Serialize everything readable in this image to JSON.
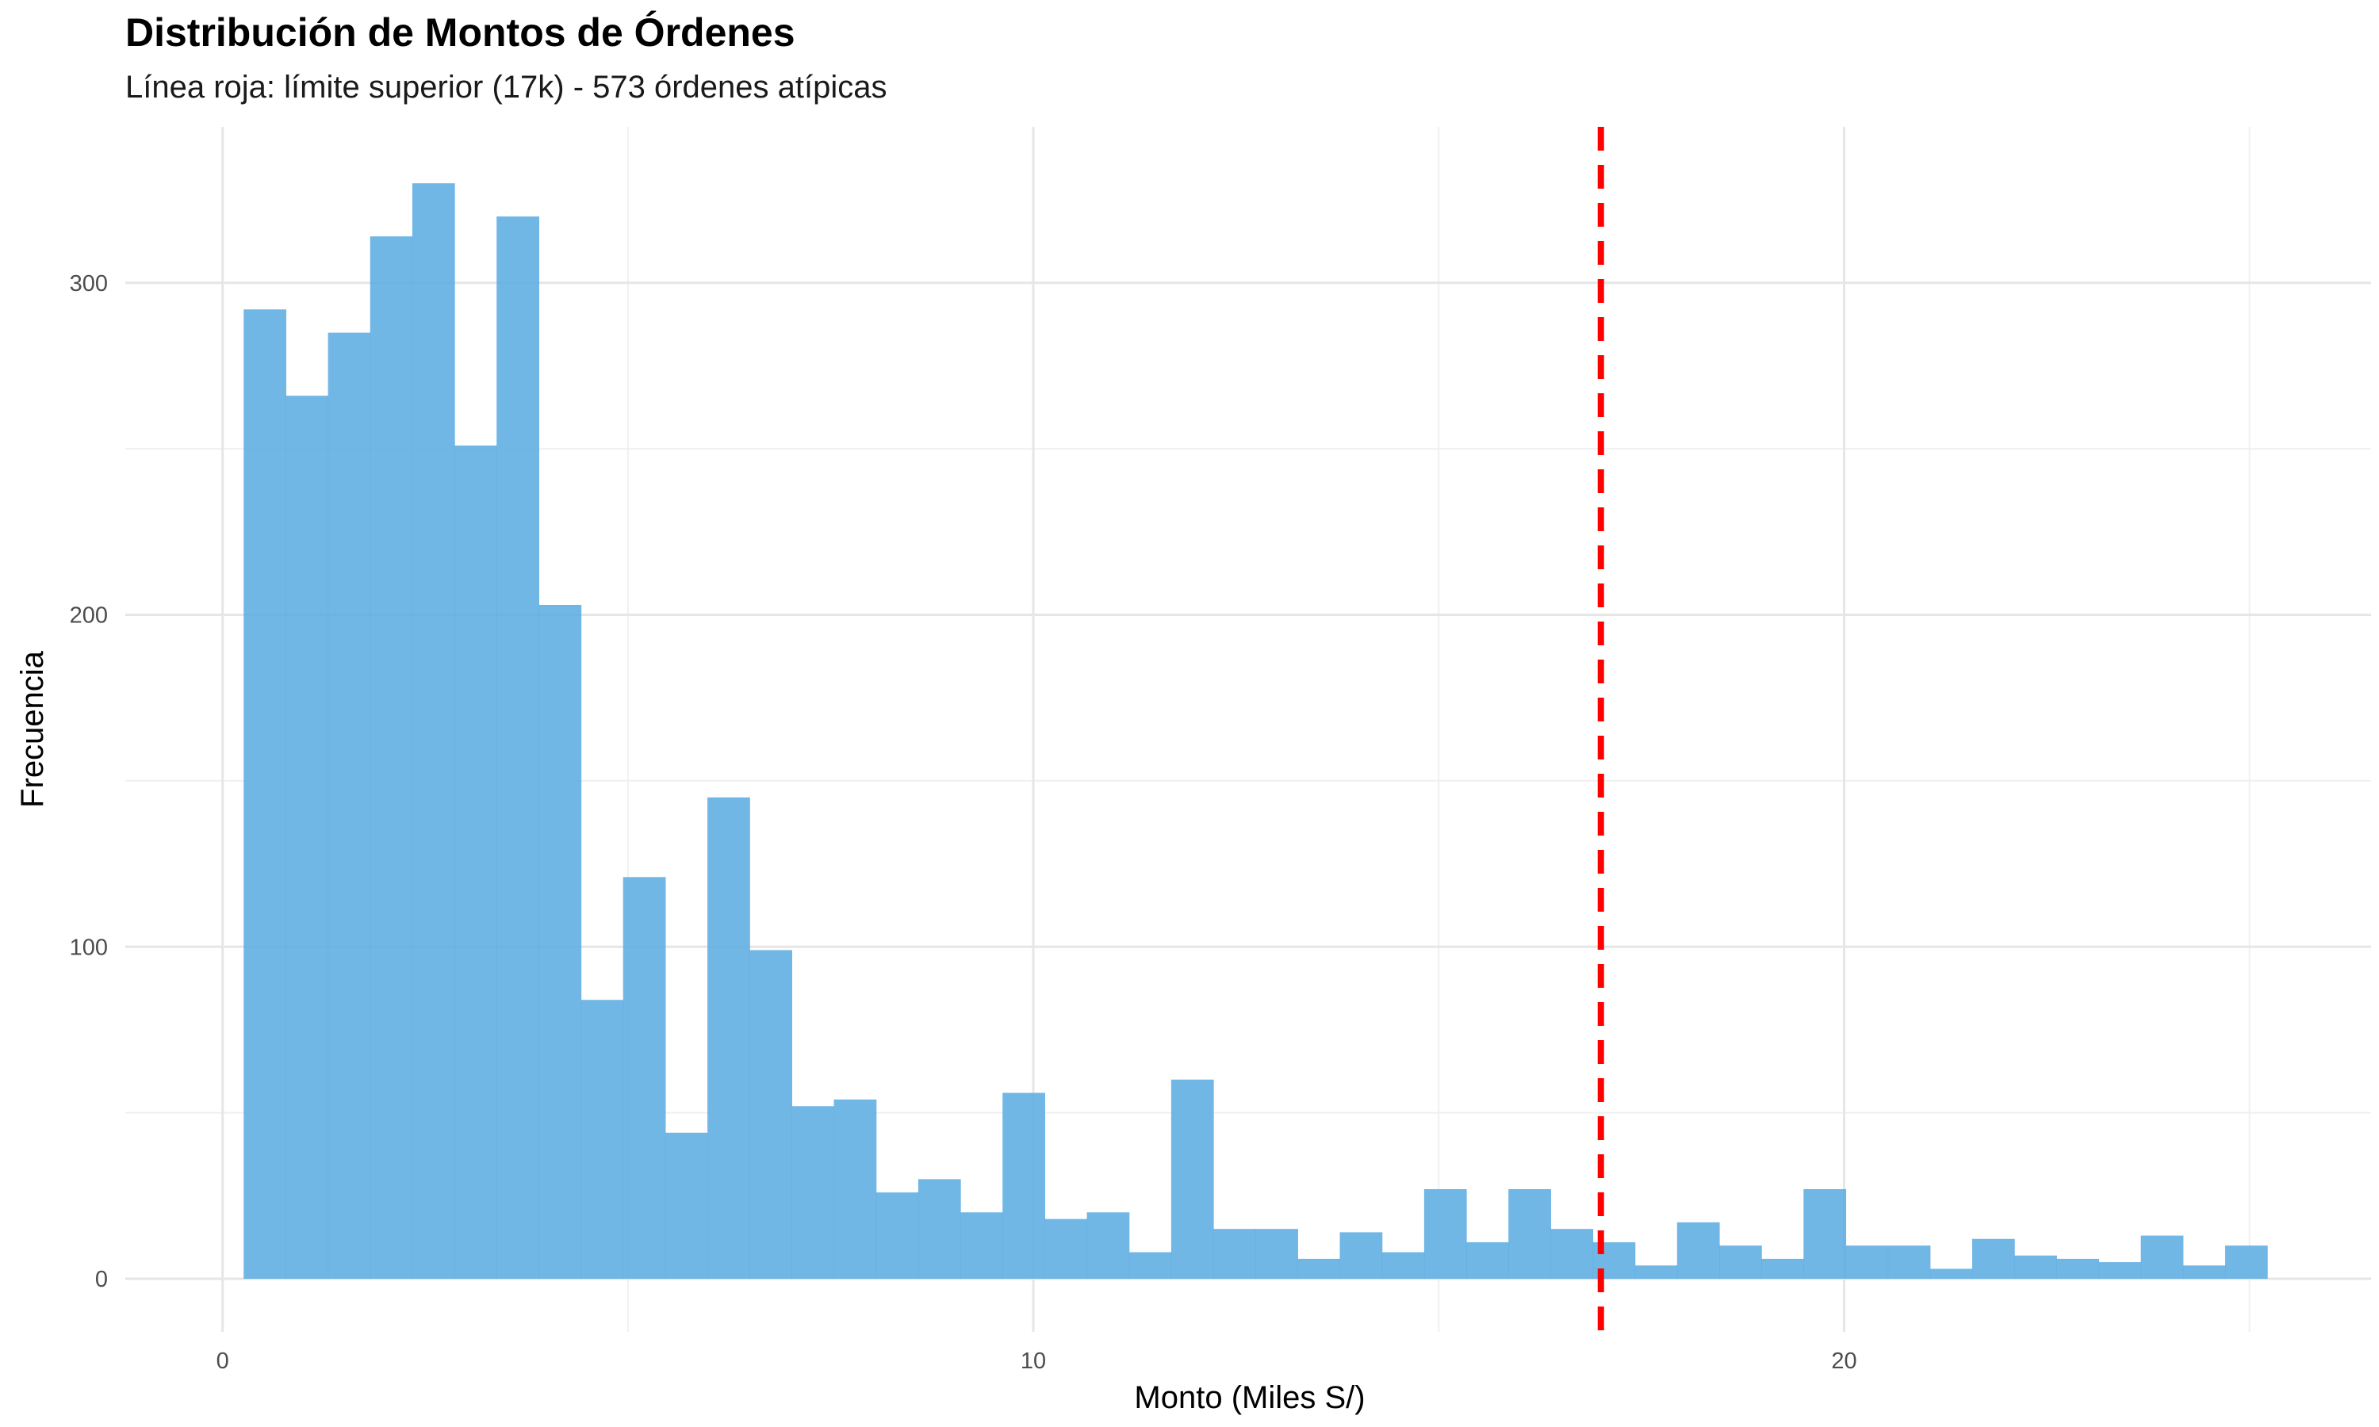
{
  "chart_data": {
    "type": "bar",
    "title": "Distribución de Montos de Órdenes",
    "subtitle": "Línea roja: límite superior (17k) - 573 órdenes atípicas",
    "xlabel": "Monto (Miles S/)",
    "ylabel": "Frecuencia",
    "xlim": [
      -1.2,
      26.5
    ],
    "ylim": [
      -16,
      347
    ],
    "x_ticks": [
      0,
      10,
      20
    ],
    "y_ticks": [
      0,
      100,
      200,
      300
    ],
    "grid": true,
    "bar_color": "#5dade2",
    "bin_width": 0.52,
    "bin_start": 0.26,
    "values": [
      292,
      266,
      285,
      314,
      330,
      251,
      320,
      203,
      84,
      121,
      44,
      145,
      99,
      52,
      54,
      26,
      30,
      20,
      56,
      18,
      20,
      8,
      60,
      15,
      15,
      6,
      14,
      8,
      27,
      11,
      27,
      15,
      11,
      4,
      17,
      10,
      6,
      27,
      10,
      10,
      3,
      12,
      7,
      6,
      5,
      13,
      4,
      10
    ],
    "reference_line": {
      "x": 17,
      "color": "#ff0000",
      "style": "dashed"
    }
  }
}
